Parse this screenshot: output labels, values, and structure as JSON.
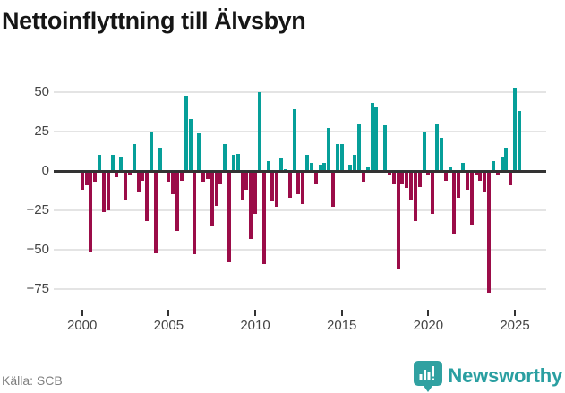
{
  "header": {
    "title": "Nettoinflyttning till Älvsbyn"
  },
  "footer": {
    "source_label": "Källa: SCB",
    "brand_name": "Newsworthy"
  },
  "chart_data": {
    "type": "bar",
    "title": "Nettoinflyttning till Älvsbyn",
    "frequency": "quarterly",
    "x_start": "2000-Q1",
    "x_end": "2025-Q2",
    "values": [
      -12,
      -9,
      -51,
      -7,
      10,
      -26,
      -25,
      10,
      -4,
      9,
      -18,
      -2,
      17,
      -13,
      -6,
      -32,
      25,
      -52,
      15,
      0,
      -7,
      -15,
      -38,
      -6,
      48,
      33,
      -53,
      24,
      -7,
      -5,
      -35,
      -22,
      -8,
      17,
      -58,
      10,
      11,
      -18,
      -12,
      -43,
      -27,
      50,
      -59,
      6,
      -19,
      -23,
      8,
      1,
      -17,
      39,
      -15,
      -21,
      10,
      5,
      -8,
      4,
      5,
      27,
      -23,
      17,
      17,
      0,
      4,
      10,
      30,
      -7,
      3,
      43,
      41,
      0,
      29,
      -2,
      -8,
      -62,
      -8,
      -11,
      -18,
      -32,
      -10,
      25,
      -3,
      -27,
      30,
      21,
      -6,
      3,
      -40,
      -17,
      5,
      -12,
      -34,
      -3,
      -6,
      -13,
      -77,
      6,
      -2,
      9,
      15,
      -9,
      53,
      38
    ],
    "x_tick_labels": [
      "2000",
      "2005",
      "2010",
      "2015",
      "2020",
      "2025"
    ],
    "y_tick_labels": [
      "50",
      "25",
      "0",
      "−25",
      "−50",
      "−75"
    ],
    "y_gridlines": [
      50,
      25,
      0,
      -25,
      -50,
      -75
    ],
    "ylim": [
      -85,
      60
    ],
    "grid": "horizontal",
    "legend": "none",
    "positive_color": "#069f99",
    "negative_color": "#9b0c48",
    "axis_color": "#333333",
    "gridline_color": "#e4e4e4"
  }
}
